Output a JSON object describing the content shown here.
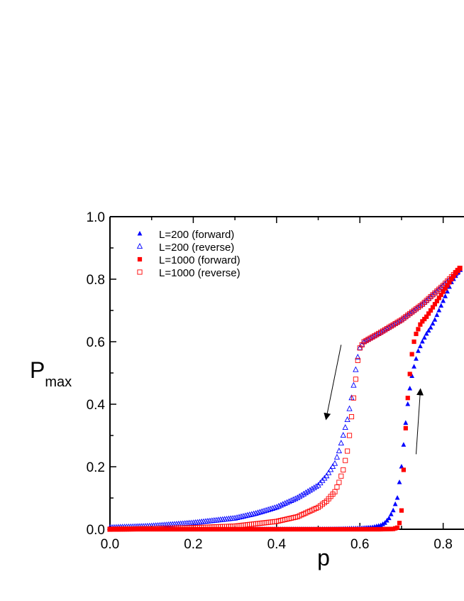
{
  "chart_data": {
    "type": "scatter",
    "xlabel": "p",
    "ylabel": "P",
    "ylabel_sub": "max",
    "xlim": [
      0.0,
      0.85
    ],
    "ylim": [
      0.0,
      1.0
    ],
    "xticks": [
      "0.0",
      "0.2",
      "0.4",
      "0.6",
      "0.8"
    ],
    "yticks": [
      "0.0",
      "0.2",
      "0.4",
      "0.6",
      "0.8",
      "1.0"
    ],
    "grid": false,
    "legend_position": "top-left",
    "series": [
      {
        "name": "L=200 (forward)",
        "marker": "triangle-filled",
        "color": "#0000ff",
        "points": [
          [
            0.0,
            0.0
          ],
          [
            0.1,
            0.0
          ],
          [
            0.2,
            0.0
          ],
          [
            0.3,
            0.0
          ],
          [
            0.4,
            0.0
          ],
          [
            0.5,
            0.0
          ],
          [
            0.55,
            0.001
          ],
          [
            0.6,
            0.003
          ],
          [
            0.63,
            0.006
          ],
          [
            0.65,
            0.012
          ],
          [
            0.66,
            0.02
          ],
          [
            0.67,
            0.035
          ],
          [
            0.68,
            0.06
          ],
          [
            0.69,
            0.1
          ],
          [
            0.695,
            0.15
          ],
          [
            0.7,
            0.2
          ],
          [
            0.705,
            0.27
          ],
          [
            0.71,
            0.34
          ],
          [
            0.715,
            0.4
          ],
          [
            0.72,
            0.45
          ],
          [
            0.725,
            0.49
          ],
          [
            0.73,
            0.52
          ],
          [
            0.735,
            0.545
          ],
          [
            0.74,
            0.57
          ],
          [
            0.75,
            0.6
          ],
          [
            0.76,
            0.625
          ],
          [
            0.77,
            0.645
          ],
          [
            0.78,
            0.67
          ],
          [
            0.79,
            0.7
          ],
          [
            0.8,
            0.73
          ],
          [
            0.81,
            0.76
          ],
          [
            0.82,
            0.79
          ],
          [
            0.83,
            0.81
          ],
          [
            0.84,
            0.83
          ]
        ]
      },
      {
        "name": "L=200 (reverse)",
        "marker": "triangle-open",
        "color": "#0000ff",
        "points": [
          [
            0.0,
            0.005
          ],
          [
            0.1,
            0.01
          ],
          [
            0.2,
            0.02
          ],
          [
            0.3,
            0.035
          ],
          [
            0.35,
            0.05
          ],
          [
            0.4,
            0.07
          ],
          [
            0.45,
            0.1
          ],
          [
            0.5,
            0.14
          ],
          [
            0.52,
            0.17
          ],
          [
            0.54,
            0.21
          ],
          [
            0.55,
            0.25
          ],
          [
            0.56,
            0.3
          ],
          [
            0.57,
            0.35
          ],
          [
            0.58,
            0.42
          ],
          [
            0.585,
            0.46
          ],
          [
            0.59,
            0.51
          ],
          [
            0.595,
            0.55
          ],
          [
            0.6,
            0.58
          ],
          [
            0.61,
            0.6
          ],
          [
            0.65,
            0.63
          ],
          [
            0.7,
            0.67
          ],
          [
            0.75,
            0.72
          ],
          [
            0.8,
            0.78
          ],
          [
            0.84,
            0.83
          ]
        ]
      },
      {
        "name": "L=1000 (forward)",
        "marker": "square-filled",
        "color": "#ff0000",
        "points": [
          [
            0.0,
            0.0
          ],
          [
            0.2,
            0.0
          ],
          [
            0.4,
            0.0
          ],
          [
            0.6,
            0.0
          ],
          [
            0.65,
            0.0
          ],
          [
            0.68,
            0.001
          ],
          [
            0.69,
            0.005
          ],
          [
            0.695,
            0.02
          ],
          [
            0.7,
            0.06
          ],
          [
            0.703,
            0.13
          ],
          [
            0.706,
            0.22
          ],
          [
            0.709,
            0.3
          ],
          [
            0.712,
            0.37
          ],
          [
            0.715,
            0.42
          ],
          [
            0.718,
            0.47
          ],
          [
            0.721,
            0.51
          ],
          [
            0.724,
            0.55
          ],
          [
            0.727,
            0.58
          ],
          [
            0.73,
            0.6
          ],
          [
            0.735,
            0.625
          ],
          [
            0.74,
            0.64
          ],
          [
            0.745,
            0.655
          ],
          [
            0.75,
            0.665
          ],
          [
            0.76,
            0.68
          ],
          [
            0.77,
            0.7
          ],
          [
            0.78,
            0.72
          ],
          [
            0.79,
            0.74
          ],
          [
            0.8,
            0.76
          ],
          [
            0.81,
            0.78
          ],
          [
            0.82,
            0.8
          ],
          [
            0.83,
            0.82
          ],
          [
            0.84,
            0.835
          ]
        ]
      },
      {
        "name": "L=1000 (reverse)",
        "marker": "square-open",
        "color": "#ff0000",
        "points": [
          [
            0.0,
            0.0
          ],
          [
            0.1,
            0.002
          ],
          [
            0.2,
            0.005
          ],
          [
            0.3,
            0.01
          ],
          [
            0.4,
            0.025
          ],
          [
            0.45,
            0.04
          ],
          [
            0.5,
            0.07
          ],
          [
            0.52,
            0.09
          ],
          [
            0.54,
            0.12
          ],
          [
            0.55,
            0.15
          ],
          [
            0.56,
            0.19
          ],
          [
            0.57,
            0.25
          ],
          [
            0.575,
            0.3
          ],
          [
            0.58,
            0.36
          ],
          [
            0.585,
            0.42
          ],
          [
            0.59,
            0.48
          ],
          [
            0.595,
            0.54
          ],
          [
            0.6,
            0.58
          ],
          [
            0.61,
            0.6
          ],
          [
            0.65,
            0.63
          ],
          [
            0.7,
            0.67
          ],
          [
            0.75,
            0.72
          ],
          [
            0.8,
            0.78
          ],
          [
            0.84,
            0.835
          ]
        ]
      }
    ],
    "annotations": [
      {
        "type": "arrow",
        "from": [
          0.555,
          0.59
        ],
        "to": [
          0.52,
          0.36
        ]
      },
      {
        "type": "arrow",
        "from": [
          0.735,
          0.24
        ],
        "to": [
          0.745,
          0.44
        ]
      }
    ]
  }
}
